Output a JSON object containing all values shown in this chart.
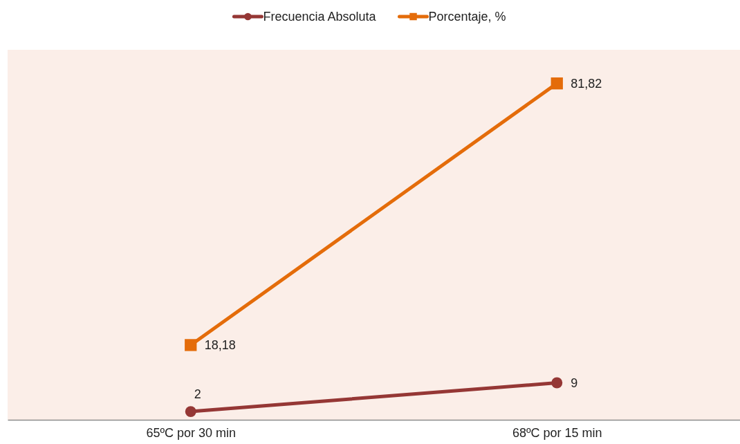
{
  "chart_data": {
    "type": "line",
    "categories": [
      "65ºC por 30 min",
      "68ºC por 15 min"
    ],
    "series": [
      {
        "name": "Frecuencia Absoluta",
        "color": "#953735",
        "marker": "circle",
        "values": [
          2,
          9
        ],
        "value_labels": [
          "2",
          "9"
        ]
      },
      {
        "name": "Porcentaje, %",
        "color": "#e46c0a",
        "marker": "square",
        "values": [
          18.18,
          81.82
        ],
        "value_labels": [
          "18,18",
          "81,82"
        ]
      }
    ],
    "ylim": [
      0,
      90
    ],
    "tick_labels": "x",
    "legend": "top"
  }
}
